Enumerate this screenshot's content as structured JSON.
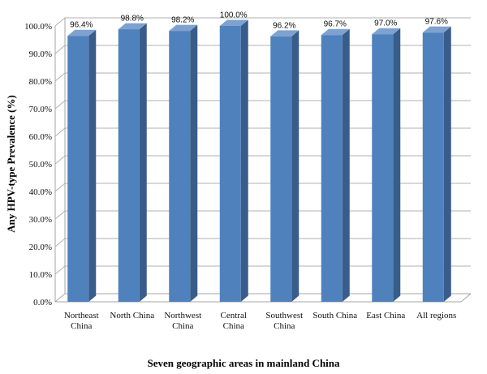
{
  "chart_data": {
    "type": "bar",
    "title": "",
    "xlabel": "Seven geographic areas in mainland China",
    "ylabel": "Any HPV-type Prevalence (%)",
    "categories": [
      [
        "Northeast",
        "China"
      ],
      [
        "North China"
      ],
      [
        "Northwest",
        "China"
      ],
      [
        "Central",
        "China"
      ],
      [
        "Southwest",
        "China"
      ],
      [
        "South China"
      ],
      [
        "East China"
      ],
      [
        "All regions"
      ]
    ],
    "values": [
      96.4,
      98.8,
      98.2,
      100.0,
      96.2,
      96.7,
      97.0,
      97.6
    ],
    "data_labels": [
      "96.4%",
      "98.8%",
      "98.2%",
      "100.0%",
      "96.2%",
      "96.7%",
      "97.0%",
      "97.6%"
    ],
    "y_ticks": [
      "0.0%",
      "10.0%",
      "20.0%",
      "30.0%",
      "40.0%",
      "50.0%",
      "60.0%",
      "70.0%",
      "80.0%",
      "90.0%",
      "100.0%"
    ],
    "ylim": [
      0,
      100
    ],
    "grid": true,
    "legend": "none",
    "bar_color": "#4f81bd",
    "bar_side_color": "#385d8a",
    "bar_top_color": "#7ea1cf"
  }
}
